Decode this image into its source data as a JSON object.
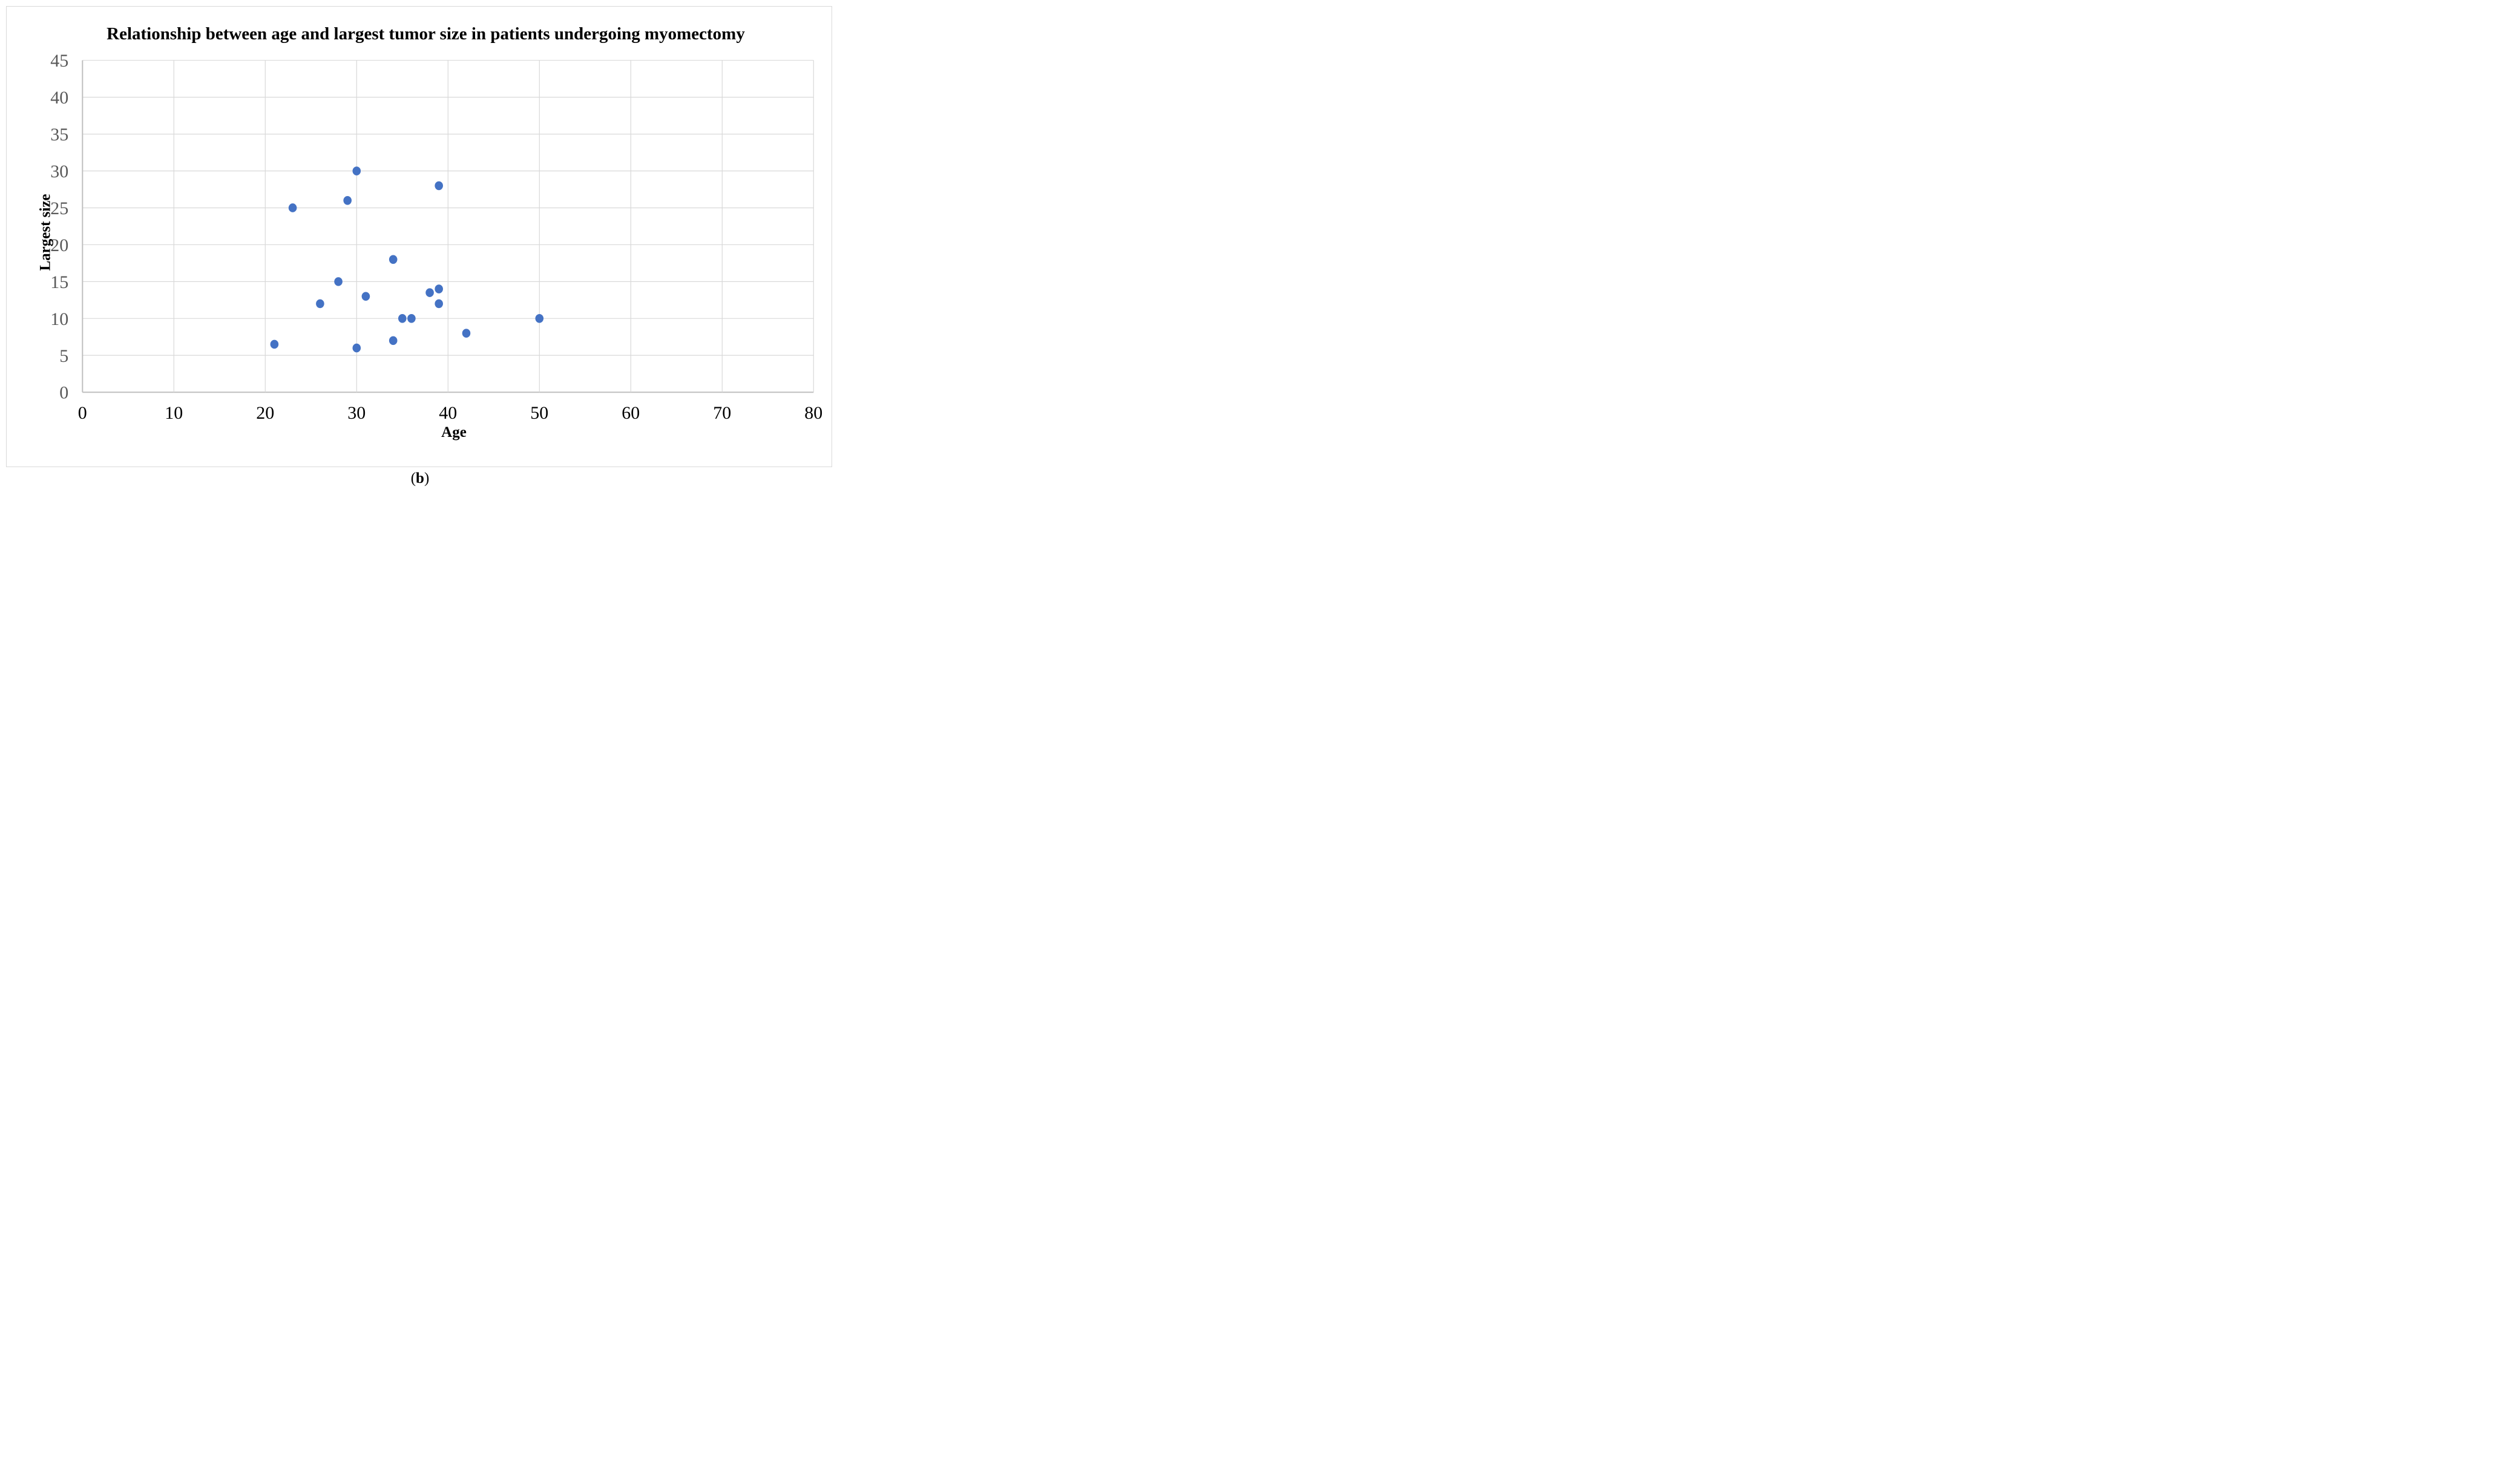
{
  "figure": {
    "caption_prefix": "(",
    "caption_letter": "b",
    "caption_suffix": ")"
  },
  "chart_data": {
    "type": "scatter",
    "title": "Relationship between age and largest tumor size in patients undergoing myomectomy",
    "xlabel": "Age",
    "ylabel": "Largest size",
    "xlim": [
      0,
      80
    ],
    "ylim": [
      0,
      45
    ],
    "x_ticks": [
      0,
      10,
      20,
      30,
      40,
      50,
      60,
      70,
      80
    ],
    "y_ticks": [
      0,
      5,
      10,
      15,
      20,
      25,
      30,
      35,
      40,
      45
    ],
    "grid": true,
    "legend": "none",
    "points": [
      [
        21,
        6.5
      ],
      [
        23,
        25
      ],
      [
        26,
        12
      ],
      [
        28,
        15
      ],
      [
        29,
        26
      ],
      [
        30,
        6
      ],
      [
        30,
        30
      ],
      [
        31,
        13
      ],
      [
        34,
        7
      ],
      [
        34,
        18
      ],
      [
        35,
        10
      ],
      [
        36,
        10
      ],
      [
        38,
        13.5
      ],
      [
        39,
        12
      ],
      [
        39,
        14
      ],
      [
        39,
        28
      ],
      [
        42,
        8
      ],
      [
        50,
        10
      ]
    ],
    "style": {
      "marker_color": "#4472C4",
      "gridline_color": "#D9D9D9",
      "axis_line_color": "#BFBFBF",
      "x_tick_color": "#000000",
      "y_tick_color": "#595959",
      "title_color": "#000000",
      "figure_border_color": "#D9D9D9"
    }
  }
}
